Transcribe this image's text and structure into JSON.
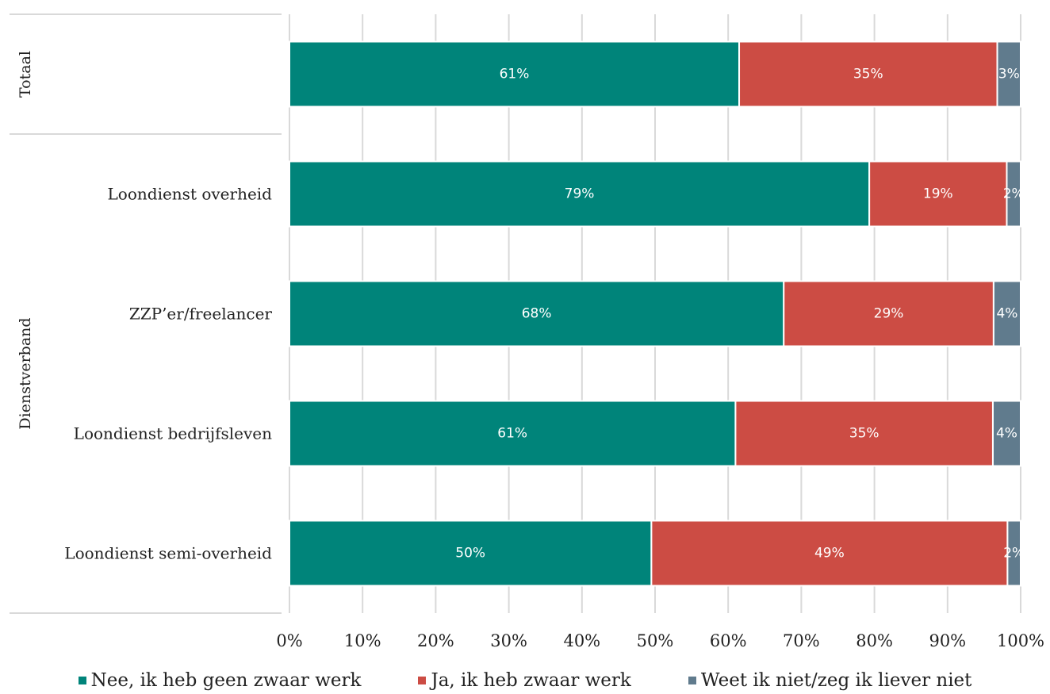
{
  "chart_data": {
    "type": "bar",
    "orientation": "horizontal",
    "stacked": true,
    "title": "",
    "xlabel": "",
    "ylabel": "",
    "xlim": [
      0,
      100
    ],
    "x_ticks": [
      "0%",
      "10%",
      "20%",
      "30%",
      "40%",
      "50%",
      "60%",
      "70%",
      "80%",
      "90%",
      "100%"
    ],
    "grid": "vertical",
    "legend_position": "bottom",
    "groups": [
      {
        "label": "Totaal",
        "categories": [
          "Totaal"
        ]
      },
      {
        "label": "Dienstverband",
        "categories": [
          "Loondienst overheid",
          "ZZP’er/freelancer",
          "Loondienst bedrijfsleven",
          "Loondienst semi-overheid"
        ]
      }
    ],
    "categories": [
      "Totaal",
      "Loondienst overheid",
      "ZZP’er/freelancer",
      "Loondienst bedrijfsleven",
      "Loondienst semi-overheid"
    ],
    "category_labels": [
      "",
      "Loondienst overheid",
      "ZZP’er/freelancer",
      "Loondienst bedrijfsleven",
      "Loondienst semi-overheid"
    ],
    "series": [
      {
        "name": "Nee, ik heb geen zwaar werk",
        "color": "#00847A",
        "values": [
          61.5,
          79.3,
          67.6,
          61.0,
          49.5
        ],
        "labels": [
          "61%",
          "79%",
          "68%",
          "61%",
          "50%"
        ]
      },
      {
        "name": "Ja, ik heb zwaar werk",
        "color": "#CC4C44",
        "values": [
          35.3,
          18.8,
          28.7,
          35.2,
          48.7
        ],
        "labels": [
          "35%",
          "19%",
          "29%",
          "35%",
          "49%"
        ]
      },
      {
        "name": "Weet ik niet/zeg ik liever niet",
        "color": "#607B8D",
        "values": [
          3.2,
          1.9,
          3.7,
          3.8,
          1.8
        ],
        "labels": [
          "3%",
          "2%",
          "4%",
          "4%",
          "2%"
        ]
      }
    ]
  }
}
